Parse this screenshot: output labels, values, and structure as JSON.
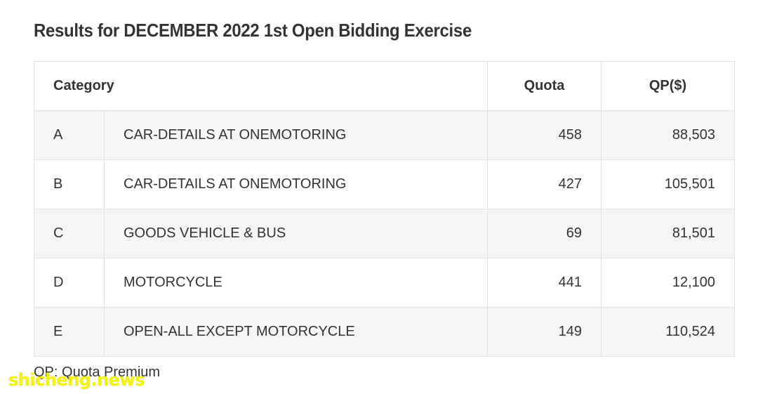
{
  "title": "Results for DECEMBER 2022 1st Open Bidding Exercise",
  "table": {
    "headers": {
      "category": "Category",
      "quota": "Quota",
      "qp": "QP($)"
    },
    "rows": [
      {
        "code": "A",
        "description": "CAR-DETAILS AT ONEMOTORING",
        "quota": "458",
        "qp": "88,503"
      },
      {
        "code": "B",
        "description": "CAR-DETAILS AT ONEMOTORING",
        "quota": "427",
        "qp": "105,501"
      },
      {
        "code": "C",
        "description": "GOODS VEHICLE & BUS",
        "quota": "69",
        "qp": "81,501"
      },
      {
        "code": "D",
        "description": "MOTORCYCLE",
        "quota": "441",
        "qp": "12,100"
      },
      {
        "code": "E",
        "description": "OPEN-ALL EXCEPT MOTORCYCLE",
        "quota": "149",
        "qp": "110,524"
      }
    ]
  },
  "footnote": "QP: Quota Premium",
  "watermark": "shicheng.news",
  "colors": {
    "text": "#333333",
    "row_shade": "#f5f5f5",
    "border": "#e3e3e3",
    "watermark": "#f2f200"
  }
}
